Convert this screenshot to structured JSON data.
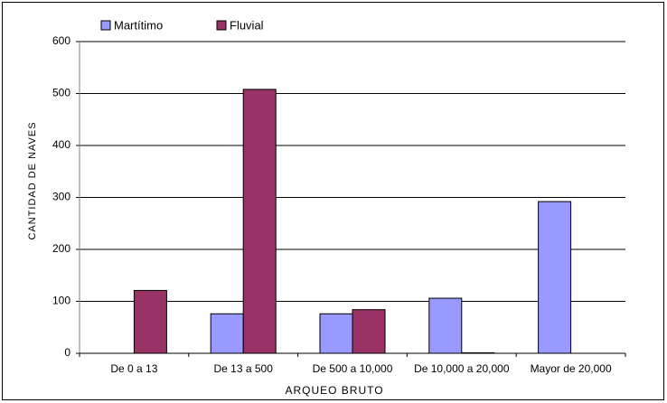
{
  "chart_data": {
    "type": "bar",
    "categories": [
      "De 0 a 13",
      "De 13 a 500",
      "De 500 a 10,000",
      "De 10,000 a 20,000",
      "Mayor de 20,000"
    ],
    "series": [
      {
        "name": "Martítimo",
        "color": "#9999ff",
        "values": [
          0,
          76,
          76,
          106,
          292
        ]
      },
      {
        "name": "Fluvial",
        "color": "#993366",
        "values": [
          121,
          508,
          84,
          1,
          0
        ]
      }
    ],
    "x_label": "ARQUEO BRUTO",
    "y_label": "CANTIDAD DE NAVES",
    "ylim": [
      0,
      600
    ],
    "yticks": [
      0,
      100,
      200,
      300,
      400,
      500,
      600
    ],
    "grid": true,
    "legend": "top"
  }
}
